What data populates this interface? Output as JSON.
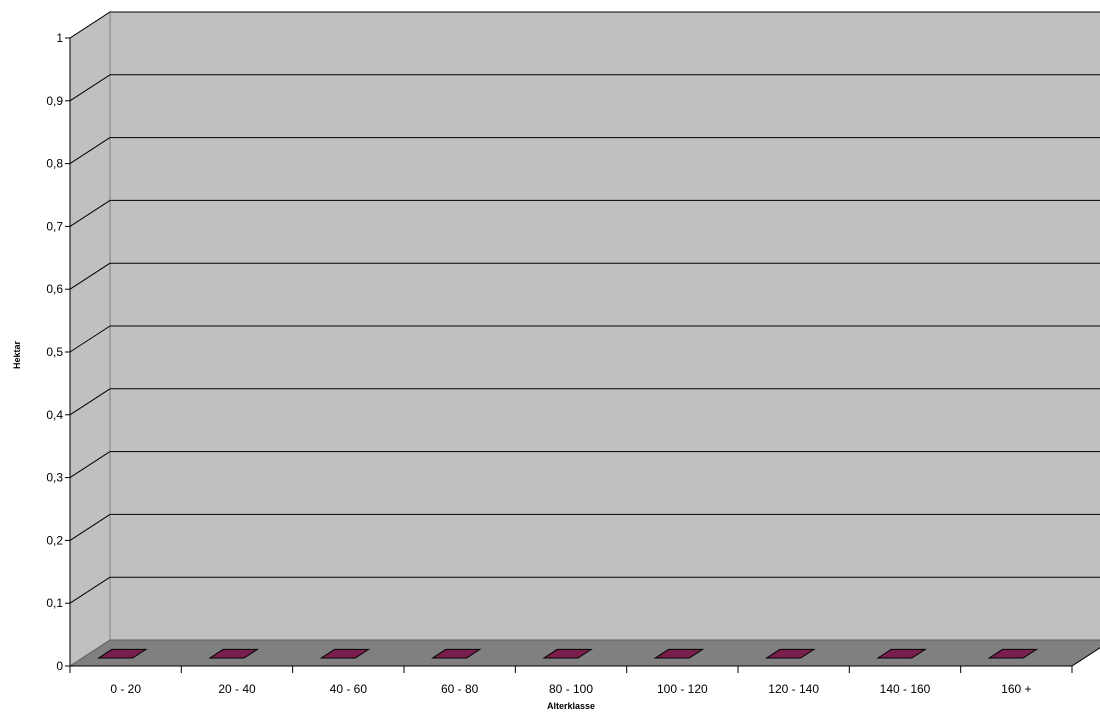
{
  "chart_data": {
    "type": "bar",
    "style": "3d-column",
    "title": "",
    "xlabel": "Alterklasse",
    "ylabel": "Hektar",
    "categories": [
      "0 - 20",
      "20 - 40",
      "40 - 60",
      "60 - 80",
      "80 - 100",
      "100 - 120",
      "120 - 140",
      "140 - 160",
      "160 +"
    ],
    "series": [
      {
        "values": [
          0,
          0,
          0,
          0,
          0,
          0,
          0,
          0,
          0
        ]
      }
    ],
    "ylim": [
      0,
      1
    ],
    "yticks": [
      "0",
      "0,1",
      "0,2",
      "0,3",
      "0,4",
      "0,5",
      "0,6",
      "0,7",
      "0,8",
      "0,9",
      "1"
    ],
    "grid": true,
    "legend": "none",
    "colors": {
      "wall": "#c0c0c0",
      "floor": "#808080",
      "bar": "#7a1f4d",
      "gridline": "#000000"
    }
  }
}
